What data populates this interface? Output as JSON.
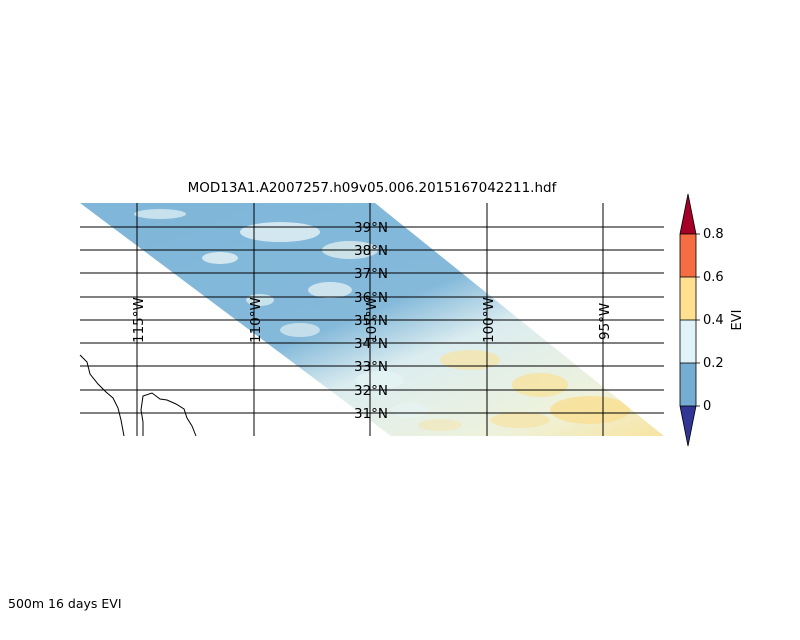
{
  "title": "MOD13A1.A2007257.h09v05.006.2015167042211.hdf",
  "caption": "500m 16 days EVI",
  "map": {
    "lat_labels": [
      "39°N",
      "38°N",
      "37°N",
      "36°N",
      "35°N",
      "34°N",
      "33°N",
      "32°N",
      "31°N"
    ],
    "lon_labels": [
      "115°W",
      "110°W",
      "105°W",
      "100°W",
      "95°W"
    ],
    "layer": "EVI",
    "colors": {
      "low": "#7fb6d9",
      "mid": "#e0f3f4",
      "high": "#fde08f",
      "boundary": "#000000"
    }
  },
  "colorbar": {
    "label": "EVI",
    "tick_labels": [
      "0",
      "0.2",
      "0.4",
      "0.6",
      "0.8"
    ],
    "bins": [
      {
        "range": "< 0",
        "color": "#313695"
      },
      {
        "range": "0 – 0.2",
        "color": "#74add1"
      },
      {
        "range": "0.2 – 0.4",
        "color": "#e0f3f8"
      },
      {
        "range": "0.4 – 0.6",
        "color": "#fee090"
      },
      {
        "range": "0.6 – 0.8",
        "color": "#f46d43"
      },
      {
        "range": "> 0.8",
        "color": "#a50026"
      }
    ]
  }
}
